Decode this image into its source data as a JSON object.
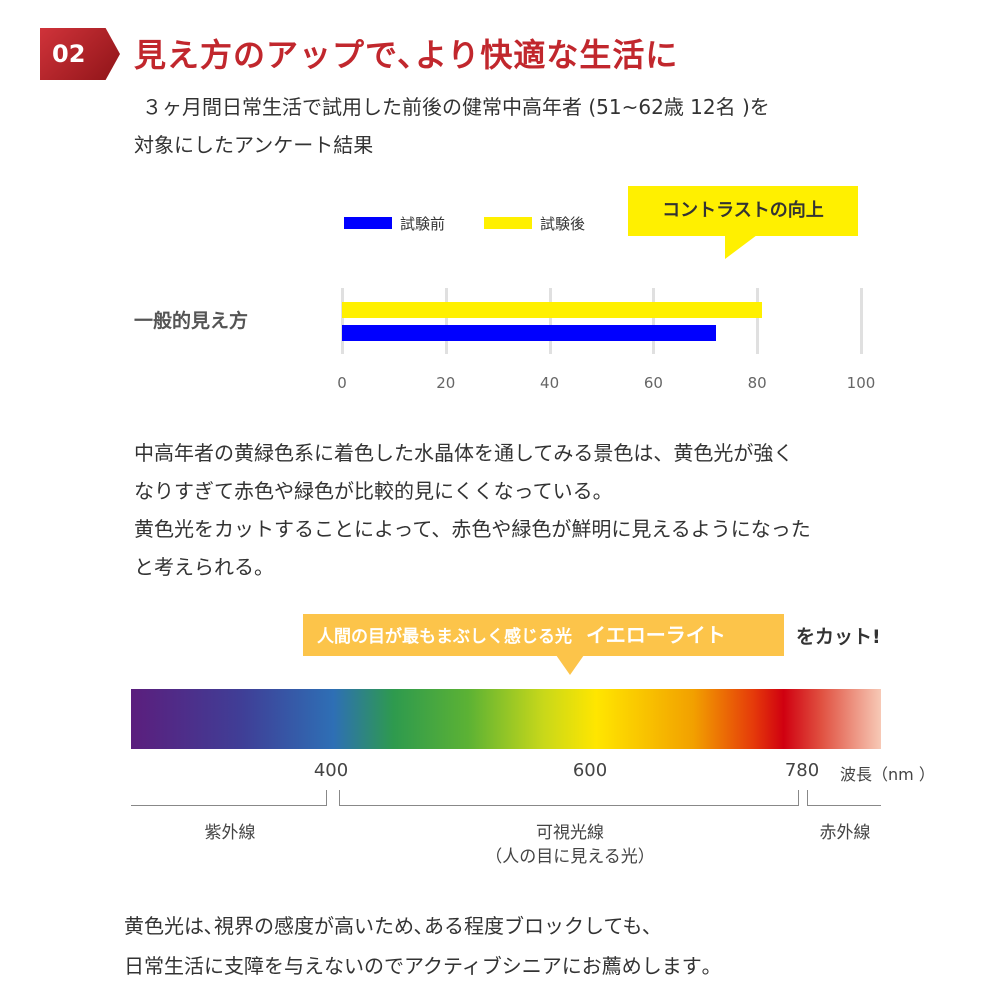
{
  "header": {
    "number": "02",
    "title": "見え方のアップで､より快適な生活に"
  },
  "intro": [
    "３ヶ月間日常生活で試用した前後の健常中高年者 (51~62歳 12名 )を",
    "対象にしたアンケート結果"
  ],
  "callout": "コントラストの向上",
  "chart_data": {
    "type": "bar",
    "orientation": "horizontal",
    "categories": [
      "一般的見え方"
    ],
    "series": [
      {
        "name": "試験前",
        "values": [
          72
        ],
        "color": "#0000ff"
      },
      {
        "name": "試験後",
        "values": [
          81
        ],
        "color": "#fff000"
      }
    ],
    "xlim": [
      0,
      100
    ],
    "xticks": [
      "0",
      "20",
      "40",
      "60",
      "80",
      "100"
    ],
    "grid": true,
    "legend": "top"
  },
  "body1": [
    "中高年者の黄緑色系に着色した水晶体を通してみる景色は、黄色光が強く",
    "なりすぎて赤色や緑色が比較的見にくくなっている。",
    "黄色光をカットすることによって、赤色や緑色が鮮明に見えるようになった",
    "と考えられる。"
  ],
  "banner": {
    "text": "人間の目が最もまぶしく感じる光",
    "highlight": "イエローライト",
    "suffix": "をカット!",
    "color": "#fcc44a"
  },
  "spectrum": {
    "wavelengths": [
      "400",
      "600",
      "780"
    ],
    "unit": "波長（nm ）",
    "regions": {
      "uv": "紫外線",
      "visible": "可視光線",
      "visible_note": "（人の目に見える光）",
      "ir": "赤外線"
    }
  },
  "footer": [
    "黄色光は､視界の感度が高いため､ある程度ブロックしても､",
    "日常生活に支障を与えないのでアクティブシニアにお薦めします｡"
  ]
}
